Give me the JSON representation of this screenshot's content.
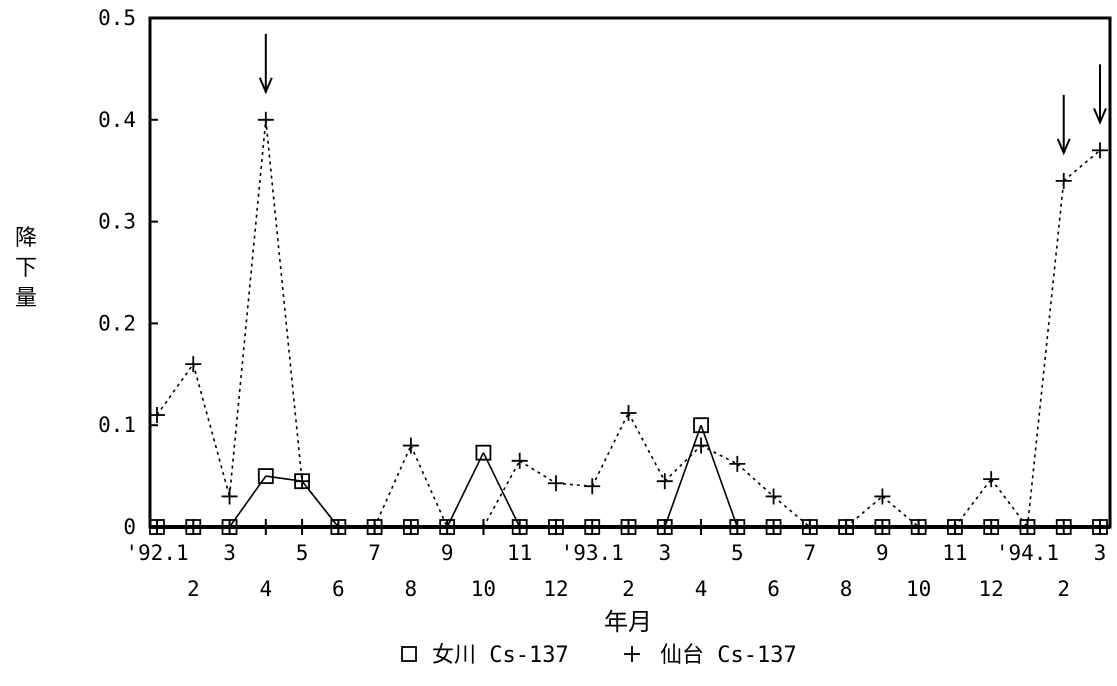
{
  "chart_data": {
    "type": "line",
    "ylabel": "降下量",
    "xlabel": "年月",
    "ylim": [
      0,
      0.5
    ],
    "yticks": [
      "0",
      "0.1",
      "0.2",
      "0.3",
      "0.4",
      "0.5"
    ],
    "x_tick_labels_row1": [
      "'92.1",
      "",
      "3",
      "",
      "5",
      "",
      "7",
      "",
      "9",
      "",
      "11",
      "",
      "'93.1",
      "",
      "3",
      "",
      "5",
      "",
      "7",
      "",
      "9",
      "",
      "11",
      "",
      "'94.1",
      "",
      "3"
    ],
    "x_tick_labels_row2": [
      "",
      "2",
      "",
      "4",
      "",
      "6",
      "",
      "8",
      "",
      "10",
      "",
      "12",
      "",
      "2",
      "",
      "4",
      "",
      "6",
      "",
      "8",
      "",
      "10",
      "",
      "12",
      "",
      "2",
      ""
    ],
    "categories": [
      "'92.1",
      "2",
      "3",
      "4",
      "5",
      "6",
      "7",
      "8",
      "9",
      "10",
      "11",
      "12",
      "'93.1",
      "2",
      "3",
      "4",
      "5",
      "6",
      "7",
      "8",
      "9",
      "10",
      "11",
      "12",
      "'94.1",
      "2",
      "3"
    ],
    "series": [
      {
        "name": "女川 Cs-137",
        "marker": "square",
        "line": "solid",
        "values": [
          0,
          0,
          0,
          0.05,
          0.045,
          0,
          0,
          0,
          0,
          0.073,
          0,
          0,
          0,
          0,
          0,
          0.1,
          0,
          0,
          0,
          0,
          0,
          0,
          0,
          0,
          0,
          0,
          0
        ]
      },
      {
        "name": "仙台 Cs-137",
        "marker": "plus",
        "line": "dotted",
        "values": [
          0.11,
          0.16,
          0.03,
          0.4,
          0.045,
          0,
          0,
          0.08,
          0,
          0,
          0.065,
          0.043,
          0.04,
          0.112,
          0.045,
          0.08,
          0.062,
          0.03,
          0,
          0,
          0.03,
          0,
          0,
          0.047,
          0,
          0.34,
          0.37
        ]
      }
    ],
    "arrows_at": [
      "4",
      "2",
      "3"
    ],
    "legend": {
      "position": "bottom",
      "items": [
        {
          "symbol": "□",
          "label": "女川 Cs-137"
        },
        {
          "symbol": "+",
          "label": "仙台 Cs-137"
        }
      ]
    }
  }
}
